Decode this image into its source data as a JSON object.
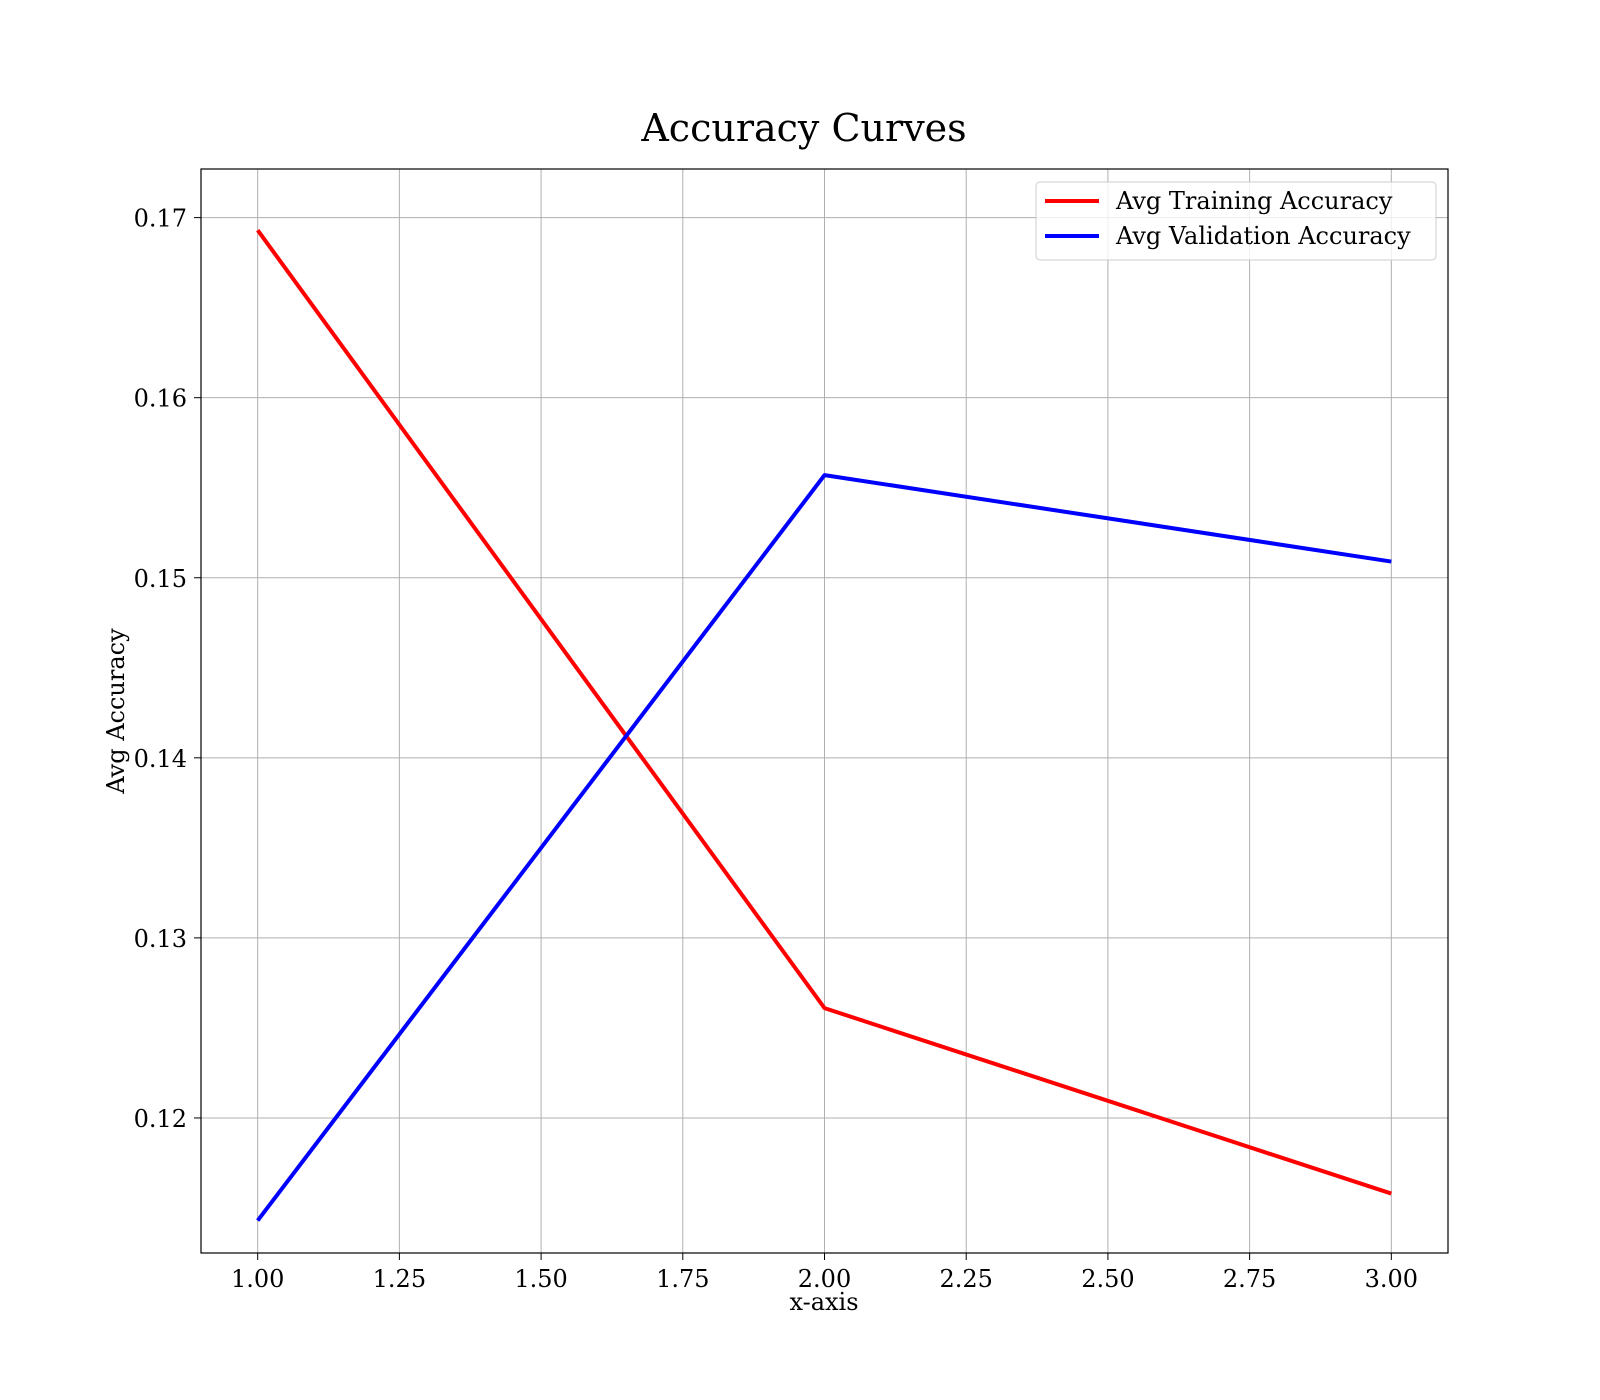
{
  "chart_data": {
    "type": "line",
    "title": "Accuracy Curves",
    "xlabel": "x-axis",
    "ylabel": "Avg Accuracy",
    "x": [
      1,
      2,
      3
    ],
    "xlim": [
      0.9,
      3.1
    ],
    "ylim": [
      0.1125,
      0.1727
    ],
    "xticks": [
      1.0,
      1.25,
      1.5,
      1.75,
      2.0,
      2.25,
      2.5,
      2.75,
      3.0
    ],
    "xtick_labels": [
      "1.00",
      "1.25",
      "1.50",
      "1.75",
      "2.00",
      "2.25",
      "2.50",
      "2.75",
      "3.00"
    ],
    "yticks": [
      0.12,
      0.13,
      0.14,
      0.15,
      0.16,
      0.17
    ],
    "ytick_labels": [
      "0.12",
      "0.13",
      "0.14",
      "0.15",
      "0.16",
      "0.17"
    ],
    "grid": true,
    "legend": "upper-right",
    "series": [
      {
        "name": "Avg Training Accuracy",
        "color": "#ff0000",
        "values": [
          0.1693,
          0.1261,
          0.1158
        ]
      },
      {
        "name": "Avg Validation Accuracy",
        "color": "#0000ff",
        "values": [
          0.1143,
          0.1557,
          0.1509
        ]
      }
    ]
  }
}
